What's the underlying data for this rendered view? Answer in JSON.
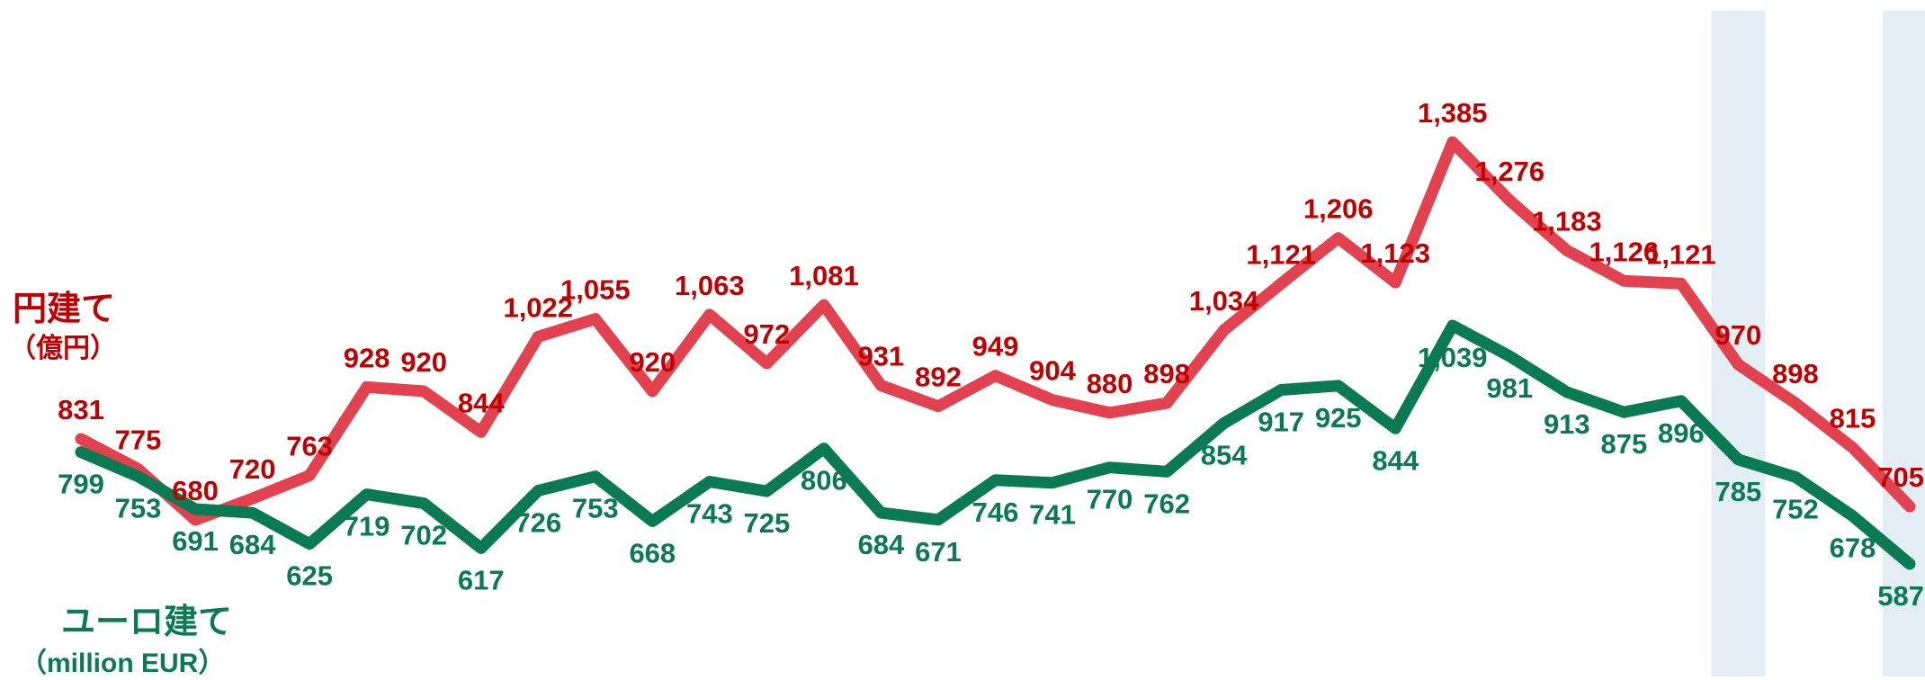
{
  "colors": {
    "jpy": "#e2424f",
    "jpy_label": "#c00000",
    "eur": "#0a7a52",
    "eur_label": "#0a7a52",
    "highlight": "#e2eef3"
  },
  "legend": {
    "jpy_title": "円建て",
    "jpy_unit": "（億円）",
    "eur_title": "ユーロ建て",
    "eur_unit": "（million EUR）"
  },
  "chart_data": {
    "type": "line",
    "title": "",
    "xlabel": "",
    "ylabel": "",
    "grid": false,
    "x": [
      1,
      2,
      3,
      4,
      5,
      6,
      7,
      8,
      9,
      10,
      11,
      12,
      13,
      14,
      15,
      16,
      17,
      18,
      19,
      20,
      21,
      22,
      23,
      24,
      25,
      26,
      27,
      28,
      29,
      30,
      31,
      32,
      33
    ],
    "highlighted_periods": [
      30,
      33
    ],
    "series": [
      {
        "name": "円建て",
        "unit": "（億円）",
        "values": [
          831,
          775,
          680,
          720,
          763,
          928,
          920,
          844,
          1022,
          1055,
          920,
          1063,
          972,
          1081,
          931,
          892,
          949,
          904,
          880,
          898,
          1034,
          1121,
          1206,
          1123,
          1385,
          1276,
          1183,
          1126,
          1121,
          970,
          898,
          815,
          705
        ]
      },
      {
        "name": "ユーロ建て",
        "unit": "（million EUR）",
        "values": [
          799,
          753,
          691,
          684,
          625,
          719,
          702,
          617,
          726,
          753,
          668,
          743,
          725,
          806,
          684,
          671,
          746,
          741,
          770,
          762,
          854,
          917,
          925,
          844,
          1039,
          981,
          913,
          875,
          896,
          785,
          752,
          678,
          587
        ]
      }
    ]
  }
}
